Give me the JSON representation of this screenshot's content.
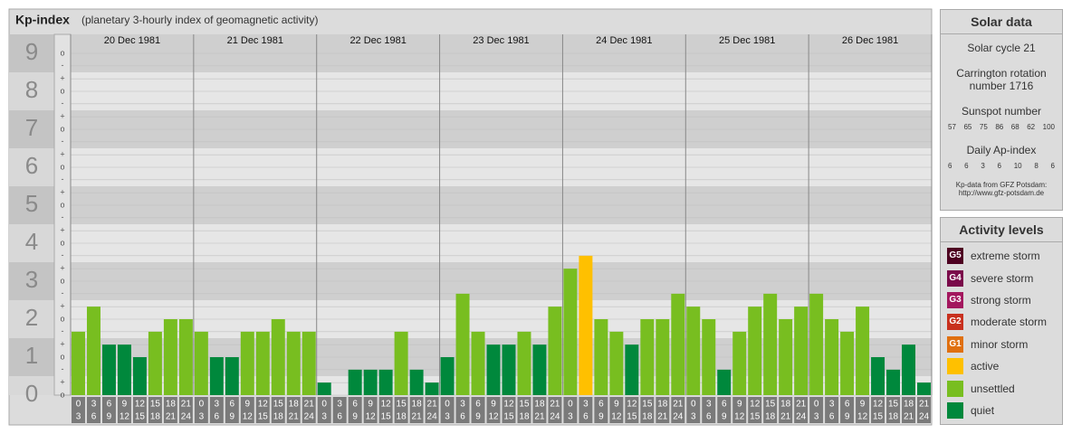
{
  "chart_data": {
    "type": "bar",
    "title": "Kp-index",
    "subtitle": "(planetary 3-hourly index of geomagnetic activity)",
    "days": [
      "20 Dec 1981",
      "21 Dec 1981",
      "22 Dec 1981",
      "23 Dec 1981",
      "24 Dec 1981",
      "25 Dec 1981",
      "26 Dec 1981"
    ],
    "time_slots": [
      [
        "0",
        "3"
      ],
      [
        "3",
        "6"
      ],
      [
        "6",
        "9"
      ],
      [
        "9",
        "12"
      ],
      [
        "12",
        "15"
      ],
      [
        "15",
        "18"
      ],
      [
        "18",
        "21"
      ],
      [
        "21",
        "24"
      ]
    ],
    "values": [
      1.67,
      2.33,
      1.33,
      1.33,
      1,
      1.67,
      2,
      2,
      1.67,
      1,
      1,
      1.67,
      1.67,
      2,
      1.67,
      1.67,
      0.33,
      0,
      0.67,
      0.67,
      0.67,
      1.67,
      0.67,
      0.33,
      1,
      2.67,
      1.67,
      1.33,
      1.33,
      1.67,
      1.33,
      2.33,
      3.33,
      3.67,
      2,
      1.67,
      1.33,
      2,
      2,
      2.67,
      2.33,
      2,
      0.67,
      1.67,
      2.33,
      2.67,
      2,
      2.33,
      2.67,
      2,
      1.67,
      2.33,
      1,
      0.67,
      1.33,
      0.33
    ],
    "colors": [
      "#78be20",
      "#78be20",
      "#00883c",
      "#00883c",
      "#00883c",
      "#78be20",
      "#78be20",
      "#78be20",
      "#78be20",
      "#00883c",
      "#00883c",
      "#78be20",
      "#78be20",
      "#78be20",
      "#78be20",
      "#78be20",
      "#00883c",
      "#00883c",
      "#00883c",
      "#00883c",
      "#00883c",
      "#78be20",
      "#00883c",
      "#00883c",
      "#00883c",
      "#78be20",
      "#78be20",
      "#00883c",
      "#00883c",
      "#78be20",
      "#00883c",
      "#78be20",
      "#78be20",
      "#ffc000",
      "#78be20",
      "#78be20",
      "#00883c",
      "#78be20",
      "#78be20",
      "#78be20",
      "#78be20",
      "#78be20",
      "#00883c",
      "#78be20",
      "#78be20",
      "#78be20",
      "#78be20",
      "#78be20",
      "#78be20",
      "#78be20",
      "#78be20",
      "#78be20",
      "#00883c",
      "#00883c",
      "#00883c",
      "#00883c"
    ],
    "ylim": [
      0,
      9.5
    ],
    "yticks": [
      0,
      1,
      2,
      3,
      4,
      5,
      6,
      7,
      8,
      9
    ],
    "yminor": [
      {
        "value": 0,
        "label": "o"
      },
      {
        "value": 0.33,
        "label": "+"
      },
      {
        "value": 0.67,
        "label": "-"
      },
      {
        "value": 1,
        "label": "o"
      },
      {
        "value": 1.33,
        "label": "+"
      },
      {
        "value": 1.67,
        "label": "-"
      },
      {
        "value": 2,
        "label": "o"
      },
      {
        "value": 2.33,
        "label": "+"
      },
      {
        "value": 2.67,
        "label": "-"
      },
      {
        "value": 3,
        "label": "o"
      },
      {
        "value": 3.33,
        "label": "+"
      },
      {
        "value": 3.67,
        "label": "-"
      },
      {
        "value": 4,
        "label": "o"
      },
      {
        "value": 4.33,
        "label": "+"
      },
      {
        "value": 4.67,
        "label": "-"
      },
      {
        "value": 5,
        "label": "o"
      },
      {
        "value": 5.33,
        "label": "+"
      },
      {
        "value": 5.67,
        "label": "-"
      },
      {
        "value": 6,
        "label": "o"
      },
      {
        "value": 6.33,
        "label": "+"
      },
      {
        "value": 6.67,
        "label": "-"
      },
      {
        "value": 7,
        "label": "o"
      },
      {
        "value": 7.33,
        "label": "+"
      },
      {
        "value": 7.67,
        "label": "-"
      },
      {
        "value": 8,
        "label": "o"
      },
      {
        "value": 8.33,
        "label": "+"
      },
      {
        "value": 8.67,
        "label": "-"
      },
      {
        "value": 9,
        "label": "o"
      }
    ],
    "grid": true
  },
  "solar_data": {
    "title": "Solar data",
    "cycle": "Solar cycle 21",
    "carrington": "Carrington rotation number 1716",
    "sunspot_label": "Sunspot number",
    "sunspot": [
      57,
      65,
      75,
      86,
      68,
      62,
      100
    ],
    "ap_label": "Daily Ap-index",
    "ap": [
      6,
      6,
      3,
      6,
      10,
      8,
      6
    ],
    "source": "Kp-data from GFZ Potsdam:",
    "source_url": "http://www.gfz-potsdam.de"
  },
  "activity_levels": {
    "title": "Activity levels",
    "items": [
      {
        "code": "G5",
        "label": "extreme storm",
        "color": "#4d0020"
      },
      {
        "code": "G4",
        "label": "severe storm",
        "color": "#7a0a4a"
      },
      {
        "code": "G3",
        "label": "strong storm",
        "color": "#a3175e"
      },
      {
        "code": "G2",
        "label": "moderate storm",
        "color": "#c8301e"
      },
      {
        "code": "G1",
        "label": "minor storm",
        "color": "#e07010"
      },
      {
        "label": "active",
        "color": "#ffc000"
      },
      {
        "label": "unsettled",
        "color": "#78be20"
      },
      {
        "label": "quiet",
        "color": "#00883c"
      }
    ]
  }
}
